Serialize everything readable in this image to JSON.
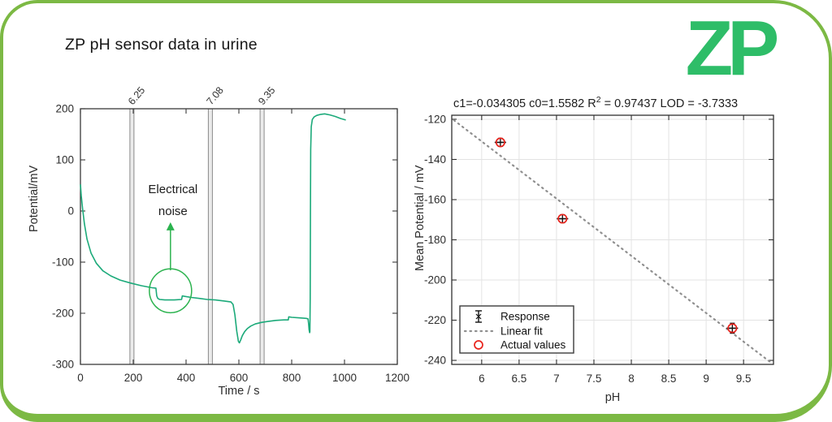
{
  "page": {
    "title": "ZP pH sensor data in urine",
    "logo_text": "ZP",
    "border_color": "#7cb944",
    "logo_color": "#2ebd68"
  },
  "chart_data": [
    {
      "type": "line",
      "name": "raw-sensor-trace",
      "xlabel": "Time / s",
      "ylabel": "Potential/mV",
      "xlim": [
        0,
        1200
      ],
      "ylim": [
        -300,
        200
      ],
      "xticks": [
        0,
        200,
        400,
        600,
        800,
        1000,
        1200
      ],
      "yticks": [
        200,
        100,
        0,
        -100,
        -200,
        -300
      ],
      "line_color": "#1caa7a",
      "frame_color": "#3a3a3a",
      "bar_line_color": "#8a8a8a",
      "bar_fill_color": "#ebebeb",
      "event_bars": [
        {
          "time": 195,
          "label": "6.25"
        },
        {
          "time": 492,
          "label": "7.08"
        },
        {
          "time": 688,
          "label": "9.35"
        }
      ],
      "series": [
        [
          0,
          52
        ],
        [
          3,
          30
        ],
        [
          8,
          5
        ],
        [
          15,
          -25
        ],
        [
          25,
          -55
        ],
        [
          40,
          -82
        ],
        [
          60,
          -102
        ],
        [
          85,
          -117
        ],
        [
          115,
          -127
        ],
        [
          150,
          -135
        ],
        [
          190,
          -141
        ],
        [
          230,
          -146
        ],
        [
          270,
          -150
        ],
        [
          286,
          -151
        ],
        [
          289,
          -166
        ],
        [
          293,
          -171
        ],
        [
          300,
          -173
        ],
        [
          320,
          -174
        ],
        [
          355,
          -174
        ],
        [
          383,
          -173
        ],
        [
          386,
          -166
        ],
        [
          395,
          -167
        ],
        [
          420,
          -169
        ],
        [
          450,
          -171
        ],
        [
          480,
          -173
        ],
        [
          510,
          -174
        ],
        [
          545,
          -176
        ],
        [
          570,
          -178
        ],
        [
          578,
          -183
        ],
        [
          585,
          -203
        ],
        [
          592,
          -235
        ],
        [
          598,
          -255
        ],
        [
          602,
          -258
        ],
        [
          607,
          -252
        ],
        [
          613,
          -244
        ],
        [
          622,
          -236
        ],
        [
          632,
          -230
        ],
        [
          645,
          -225
        ],
        [
          662,
          -221
        ],
        [
          685,
          -218
        ],
        [
          710,
          -216
        ],
        [
          740,
          -214
        ],
        [
          770,
          -213
        ],
        [
          787,
          -213
        ],
        [
          789,
          -207
        ],
        [
          800,
          -208
        ],
        [
          830,
          -209
        ],
        [
          855,
          -210
        ],
        [
          862,
          -211
        ],
        [
          864,
          -220
        ],
        [
          866,
          -232
        ],
        [
          868,
          -238
        ],
        [
          869,
          -236
        ],
        [
          870,
          -170
        ],
        [
          871,
          0
        ],
        [
          872,
          120
        ],
        [
          874,
          165
        ],
        [
          878,
          179
        ],
        [
          885,
          184
        ],
        [
          895,
          187
        ],
        [
          910,
          189
        ],
        [
          925,
          190
        ],
        [
          945,
          188
        ],
        [
          965,
          185
        ],
        [
          985,
          181
        ],
        [
          1005,
          178
        ]
      ],
      "annotation": {
        "lines": [
          "Electrical",
          "noise"
        ],
        "color": "#2cb34f",
        "text_color": "#1c1c1c",
        "circle": {
          "t": 341,
          "v": -156,
          "rt": 80,
          "rv": 43
        },
        "arrow": {
          "t": 341,
          "v_from": -116,
          "v_to": -22
        }
      }
    },
    {
      "type": "scatter",
      "name": "calibration-fit",
      "title_parts": {
        "prefix": "c1=-0.034305 c0=1.5582  R",
        "sup": "2",
        "suffix": " = 0.97437  LOD = -3.7333"
      },
      "xlabel": "pH",
      "ylabel": "Mean Potential / mV",
      "xlim": [
        5.6,
        9.9
      ],
      "ylim": [
        -242,
        -118
      ],
      "xticks": [
        6,
        6.5,
        7,
        7.5,
        8,
        8.5,
        9,
        9.5
      ],
      "yticks": [
        -120,
        -140,
        -160,
        -180,
        -200,
        -220,
        -240
      ],
      "grid_color": "#e3e3e3",
      "frame_color": "#2f2f2f",
      "point_color": "#e8231c",
      "marker_color": "#111111",
      "fit_color": "#8f8f8f",
      "points": [
        {
          "ph": 6.25,
          "mv": -131.5,
          "err": 2
        },
        {
          "ph": 7.08,
          "mv": -169.5,
          "err": 2
        },
        {
          "ph": 9.35,
          "mv": -224.0,
          "err": 2.5
        }
      ],
      "fit_line": {
        "x1": 5.63,
        "y1": -120.5,
        "x2": 9.88,
        "y2": -241.5
      },
      "legend": [
        {
          "label": "Response",
          "marker": "errorbar"
        },
        {
          "label": "Linear fit",
          "marker": "dotted"
        },
        {
          "label": "Actual values",
          "marker": "circle"
        }
      ]
    }
  ]
}
